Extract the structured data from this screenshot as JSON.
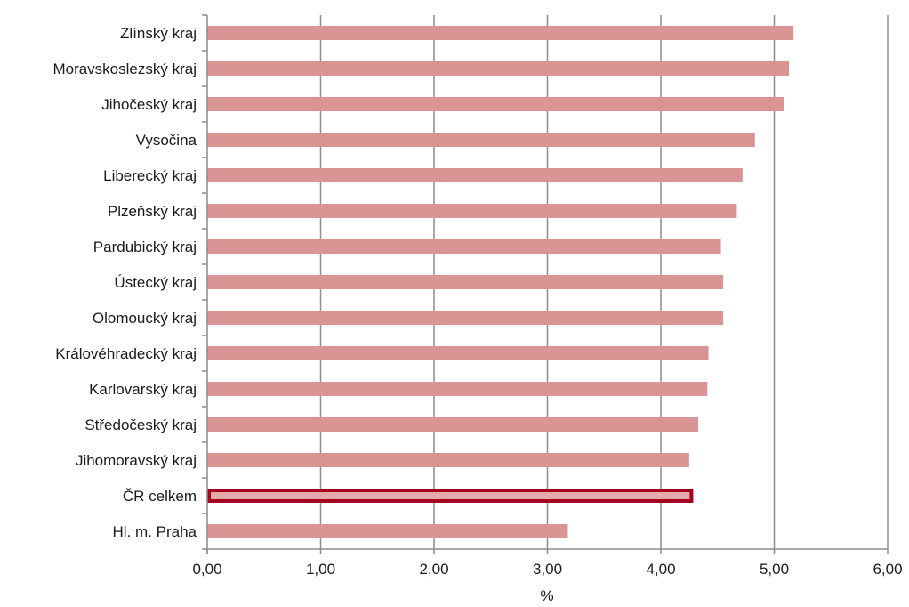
{
  "chart_data": {
    "type": "bar",
    "orientation": "horizontal",
    "categories": [
      "Zlínský kraj",
      "Moravskoslezský kraj",
      "Jihočeský kraj",
      "Vysočina",
      "Liberecký kraj",
      "Plzeňský kraj",
      "Pardubický kraj",
      "Ústecký kraj",
      "Olomoucký kraj",
      "Královéhradecký kraj",
      "Karlovarský kraj",
      "Středočeský kraj",
      "Jihomoravský kraj",
      "ČR celkem",
      "Hl. m. Praha"
    ],
    "values": [
      5.17,
      5.13,
      5.09,
      4.83,
      4.72,
      4.67,
      4.53,
      4.55,
      4.55,
      4.42,
      4.41,
      4.33,
      4.25,
      4.27,
      3.18
    ],
    "highlight_category": "ČR celkem",
    "title": "",
    "xlabel": "%",
    "ylabel": "",
    "xlim": [
      0,
      6
    ],
    "xticks": [
      0,
      1,
      2,
      3,
      4,
      5,
      6
    ],
    "xtick_labels": [
      "0,00",
      "1,00",
      "2,00",
      "3,00",
      "4,00",
      "5,00",
      "6,00"
    ],
    "grid": "vertical",
    "legend": "none",
    "colors": {
      "bar": "#d99594",
      "highlight_border": "#a50021",
      "highlight_fill": "#e3aaa9",
      "grid": "#8c8c8c",
      "axis": "#8c8c8c"
    }
  }
}
